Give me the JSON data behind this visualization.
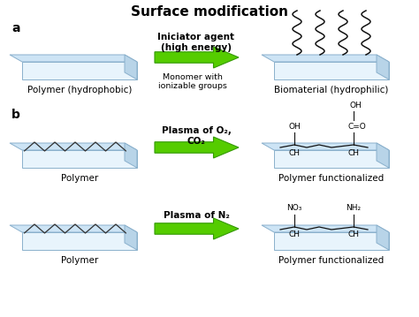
{
  "title": "Surface modification",
  "title_fontsize": 11,
  "title_fontweight": "bold",
  "bg_color": "#ffffff",
  "label_a": "a",
  "label_b": "b",
  "polymer_hydrophobic": "Polymer (hydrophobic)",
  "biomaterial": "Biomaterial (hydrophilic)",
  "polymer1": "Polymer",
  "polymer2": "Polymer",
  "polymer_func1": "Polymer functionalized",
  "polymer_func2": "Polymer functionalized",
  "initiator_line1": "Iniciator agent",
  "initiator_line2": "(high energy)",
  "monomer_label": "Monomer with\nionizable groups",
  "plasma_o2_line1": "Plasma of O₂,",
  "plasma_o2_line2": "CO₂",
  "plasma_n2": "Plasma of N₂",
  "slab_top_color": "#cde4f5",
  "slab_front_color": "#e8f4fc",
  "slab_right_color": "#b8d4e8",
  "slab_edge_color": "#8ab0cc",
  "arrow_color": "#55cc00",
  "arrow_edge": "#339900",
  "text_color": "#000000",
  "annot_fontsize": 7.5,
  "bold_fontsize": 7.5,
  "chem_fontsize": 6.5
}
